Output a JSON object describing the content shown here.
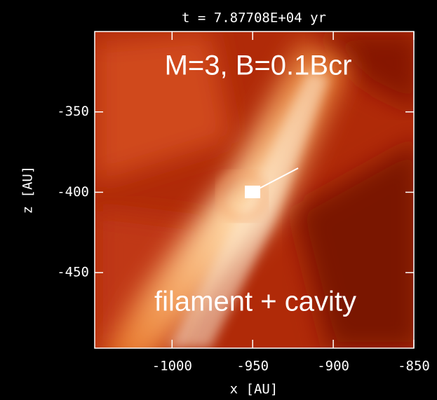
{
  "chart_data": {
    "type": "image",
    "title": "t = 7.87708E+04 yr",
    "x_label": "x [AU]",
    "y_label": "z [AU]",
    "xlim": [
      -1048,
      -850
    ],
    "ylim": [
      -497,
      -300
    ],
    "xticks": [
      -1000,
      -950,
      -900,
      -850
    ],
    "yticks": [
      -350,
      -400,
      -450
    ],
    "annotations": [
      "M=3, B=0.1Bcr",
      "filament + cavity"
    ]
  }
}
